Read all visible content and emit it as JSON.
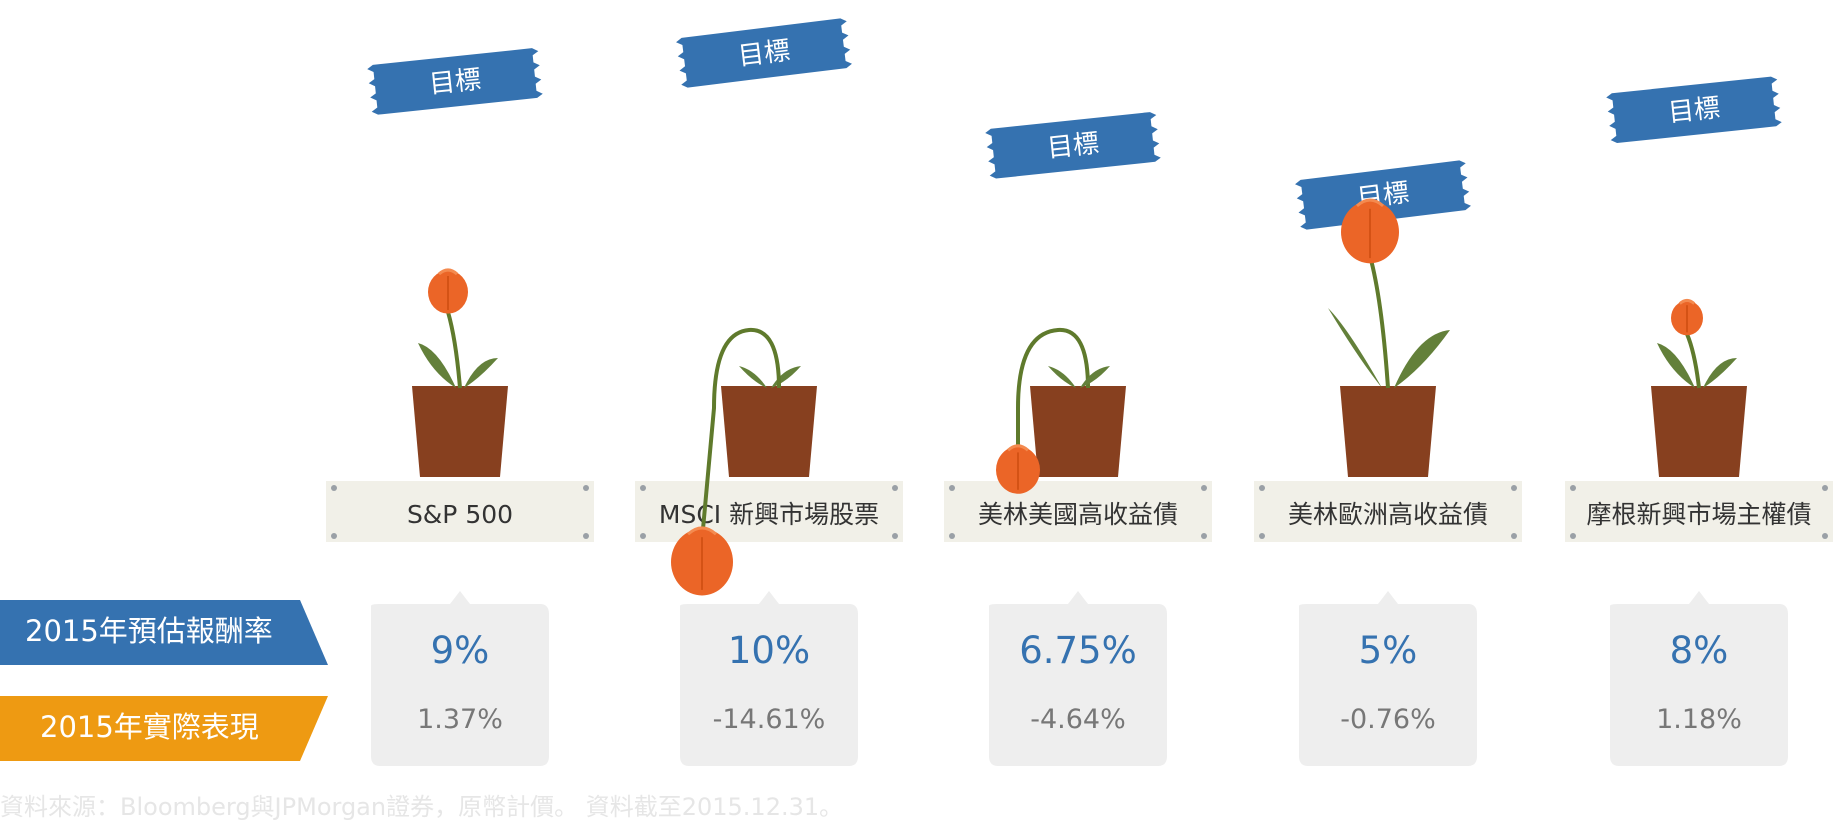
{
  "chart_data": {
    "type": "bar",
    "categories": [
      "S&P 500",
      "MSCI 新興市場股票",
      "美林美國高收益債",
      "美林歐洲高收益債",
      "摩根新興市場主權債"
    ],
    "series": [
      {
        "name": "2015年預估報酬率",
        "values": [
          9,
          10,
          6.75,
          5,
          8
        ]
      },
      {
        "name": "2015年實際表現",
        "values": [
          1.37,
          -14.61,
          -4.64,
          -0.76,
          1.18
        ]
      }
    ],
    "value_labels": {
      "estimate": [
        "9%",
        "10%",
        "6.75%",
        "5%",
        "8%"
      ],
      "actual": [
        "1.37%",
        "-14.61%",
        "-4.64%",
        "-0.76%",
        "1.18%"
      ]
    },
    "target_label": "目標",
    "legend": [
      "2015年預估報酬率",
      "2015年實際表現"
    ],
    "source_note": "資料來源：Bloomberg與JPMorgan證券，原幣計價。   資料截至2015.12.31。"
  },
  "colors": {
    "estimate": "#3572b0",
    "actual": "#ee9a12",
    "flower": "#eb6527",
    "pot": "#87401f",
    "stem": "#5f7a2c",
    "leaf": "#63803a",
    "label_bg": "#f1f0e8",
    "value_box": "#eeeeee",
    "actual_text": "#777777"
  }
}
